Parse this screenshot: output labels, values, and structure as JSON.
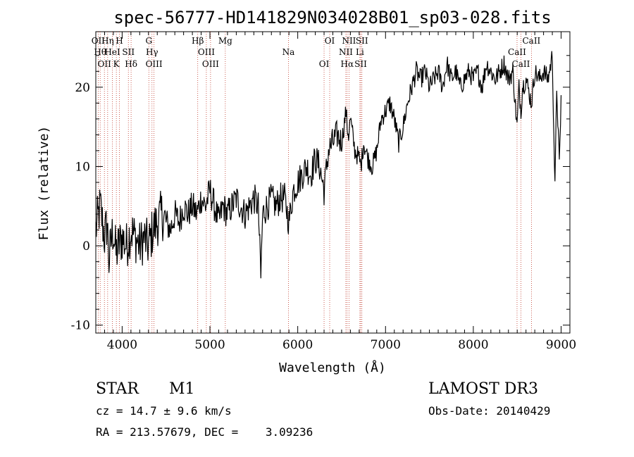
{
  "chart_data": {
    "type": "line",
    "title": "spec-56777-HD141829N034028B01_sp03-028.fits",
    "xlabel": "Wavelength (Å)",
    "ylabel": "Flux (relative)",
    "xlim": [
      3700,
      9100
    ],
    "ylim": [
      -11,
      27
    ],
    "xticks": [
      4000,
      5000,
      6000,
      7000,
      8000,
      9000
    ],
    "yticks": [
      -10,
      0,
      10,
      20
    ],
    "series": [
      {
        "name": "spectrum",
        "x": [
          3700,
          3750,
          3800,
          3830,
          3850,
          3880,
          3900,
          3930,
          3960,
          4000,
          4050,
          4100,
          4150,
          4200,
          4250,
          4300,
          4350,
          4400,
          4450,
          4500,
          4550,
          4600,
          4650,
          4700,
          4750,
          4800,
          4850,
          4900,
          4950,
          5000,
          5050,
          5100,
          5150,
          5200,
          5250,
          5300,
          5350,
          5400,
          5450,
          5500,
          5550,
          5580,
          5600,
          5650,
          5700,
          5750,
          5800,
          5850,
          5900,
          5950,
          6000,
          6050,
          6100,
          6150,
          6200,
          6250,
          6300,
          6350,
          6400,
          6450,
          6500,
          6550,
          6563,
          6580,
          6600,
          6650,
          6700,
          6720,
          6750,
          6800,
          6850,
          6900,
          6950,
          7000,
          7050,
          7100,
          7150,
          7200,
          7250,
          7300,
          7350,
          7400,
          7450,
          7500,
          7550,
          7600,
          7650,
          7700,
          7750,
          7800,
          7850,
          7900,
          7950,
          8000,
          8050,
          8100,
          8150,
          8200,
          8250,
          8300,
          8350,
          8400,
          8450,
          8498,
          8520,
          8542,
          8560,
          8600,
          8662,
          8700,
          8750,
          8800,
          8850,
          8900,
          8930,
          8950,
          8980,
          9000
        ],
        "y": [
          2,
          5,
          1,
          3,
          -2,
          1,
          2,
          -1,
          0,
          1,
          0,
          2,
          1,
          0,
          1,
          0,
          2,
          3,
          4,
          3,
          2,
          4,
          3,
          5,
          4,
          5,
          4,
          6,
          5,
          7,
          5,
          3,
          5,
          4,
          5,
          6,
          5,
          4,
          5,
          6,
          5,
          -4,
          4,
          5,
          6,
          5,
          6,
          6,
          3,
          7,
          8,
          9,
          10,
          9,
          11,
          10,
          7,
          12,
          13,
          14,
          13,
          17,
          15,
          14,
          16,
          12,
          11,
          10,
          13,
          11,
          10,
          12,
          16,
          17,
          18,
          16,
          13,
          15,
          18,
          20,
          22,
          21,
          22,
          20,
          21,
          22,
          20,
          23,
          21,
          22,
          20,
          21,
          22,
          21,
          22,
          20,
          23,
          22,
          21,
          22,
          23,
          21,
          22,
          15,
          20,
          17,
          20,
          21,
          18,
          22,
          21,
          22,
          21,
          24,
          7,
          20,
          10,
          19
        ]
      }
    ],
    "lines": [
      {
        "wl": 3727,
        "label": "OII"
      },
      {
        "wl": 3750,
        "label": "Hθ"
      },
      {
        "wl": 3798,
        "label": "OII"
      },
      {
        "wl": 3835,
        "label": "Hη"
      },
      {
        "wl": 3889,
        "label": "HeI"
      },
      {
        "wl": 3934,
        "label": "K"
      },
      {
        "wl": 3969,
        "label": "H"
      },
      {
        "wl": 4071,
        "label": "SII"
      },
      {
        "wl": 4102,
        "label": "Hδ"
      },
      {
        "wl": 4304,
        "label": "G"
      },
      {
        "wl": 4340,
        "label": "Hγ"
      },
      {
        "wl": 4363,
        "label": "OIII"
      },
      {
        "wl": 4861,
        "label": "Hβ"
      },
      {
        "wl": 4959,
        "label": "OIII"
      },
      {
        "wl": 5007,
        "label": "OIII"
      },
      {
        "wl": 5175,
        "label": "Mg"
      },
      {
        "wl": 5894,
        "label": "Na"
      },
      {
        "wl": 6300,
        "label": "OI"
      },
      {
        "wl": 6364,
        "label": "OI"
      },
      {
        "wl": 6548,
        "label": "NII"
      },
      {
        "wl": 6563,
        "label": "Hα"
      },
      {
        "wl": 6584,
        "label": "NII"
      },
      {
        "wl": 6708,
        "label": "Li"
      },
      {
        "wl": 6717,
        "label": "SII"
      },
      {
        "wl": 6731,
        "label": "SII"
      },
      {
        "wl": 8498,
        "label": "CaII"
      },
      {
        "wl": 8542,
        "label": "CaII"
      },
      {
        "wl": 8662,
        "label": "CaII"
      }
    ]
  },
  "info": {
    "class": "STAR",
    "subclass": "M1",
    "survey": "LAMOST DR3",
    "cz": "cz = 14.7 ± 9.6 km/s",
    "obs_date": "Obs-Date: 20140429",
    "coords": "RA = 213.57679, DEC =    3.09236"
  }
}
